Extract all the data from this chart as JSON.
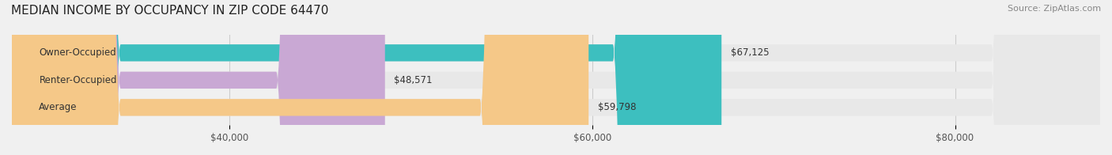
{
  "title": "MEDIAN INCOME BY OCCUPANCY IN ZIP CODE 64470",
  "source": "Source: ZipAtlas.com",
  "categories": [
    "Owner-Occupied",
    "Renter-Occupied",
    "Average"
  ],
  "values": [
    67125,
    48571,
    59798
  ],
  "bar_colors": [
    "#3dbfbf",
    "#c9a8d4",
    "#f5c888"
  ],
  "bar_edge_colors": [
    "#3dbfbf",
    "#c9a8d4",
    "#f5c888"
  ],
  "value_labels": [
    "$67,125",
    "$48,571",
    "$59,798"
  ],
  "xlim": [
    28000,
    88000
  ],
  "xticks": [
    40000,
    60000,
    80000
  ],
  "xtick_labels": [
    "$40,000",
    "$60,000",
    "$80,000"
  ],
  "background_color": "#f0f0f0",
  "bar_background_color": "#e8e8e8",
  "title_fontsize": 11,
  "source_fontsize": 8,
  "label_fontsize": 8.5,
  "value_fontsize": 8.5,
  "tick_fontsize": 8.5,
  "bar_height": 0.62
}
